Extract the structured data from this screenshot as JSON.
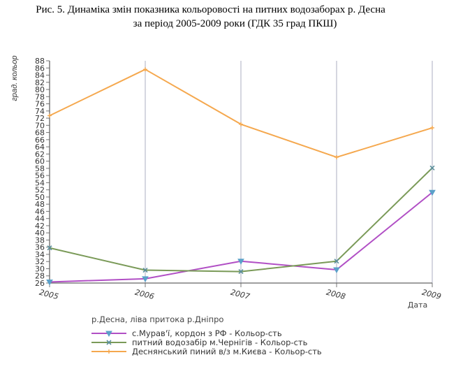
{
  "caption": {
    "line1": "Рис. 5. Динаміка змін показника кольоровості на питних водозаборах р. Десна",
    "line2": "за період 2005-2009 роки (ГДК 35 град ПКШ)"
  },
  "chart_data": {
    "type": "line",
    "ylabel": "град. кольор",
    "xlabel": "Дата",
    "subtitle": "р.Десна, ліва притока р.Дніпро",
    "x": [
      "2005",
      "2006",
      "2007",
      "2008",
      "2009"
    ],
    "ylim": [
      26,
      88
    ],
    "yticks": [
      26,
      28,
      30,
      32,
      34,
      36,
      38,
      40,
      42,
      44,
      46,
      48,
      50,
      52,
      54,
      56,
      58,
      60,
      62,
      64,
      66,
      68,
      70,
      72,
      74,
      76,
      78,
      80,
      82,
      84,
      86,
      88
    ],
    "grid": "vertical",
    "legend_position": "bottom",
    "series": [
      {
        "name": "с.Мурав'ї, кордон з РФ - Кольор-сть",
        "color": "#b14fc5",
        "marker": "triangle-down",
        "values": [
          26.3,
          27.2,
          32.1,
          29.7,
          51.3
        ]
      },
      {
        "name": "питний водозабір м.Чернігів - Кольор-сть",
        "color": "#7a9a58",
        "marker": "cross",
        "values": [
          35.8,
          29.6,
          29.2,
          32.1,
          58.1
        ]
      },
      {
        "name": "Деснянський пиний в/з м.Києва - Кольор-сть",
        "color": "#f5a84e",
        "marker": "plus",
        "values": [
          72.7,
          85.6,
          70.3,
          61.1,
          69.3
        ]
      }
    ]
  }
}
